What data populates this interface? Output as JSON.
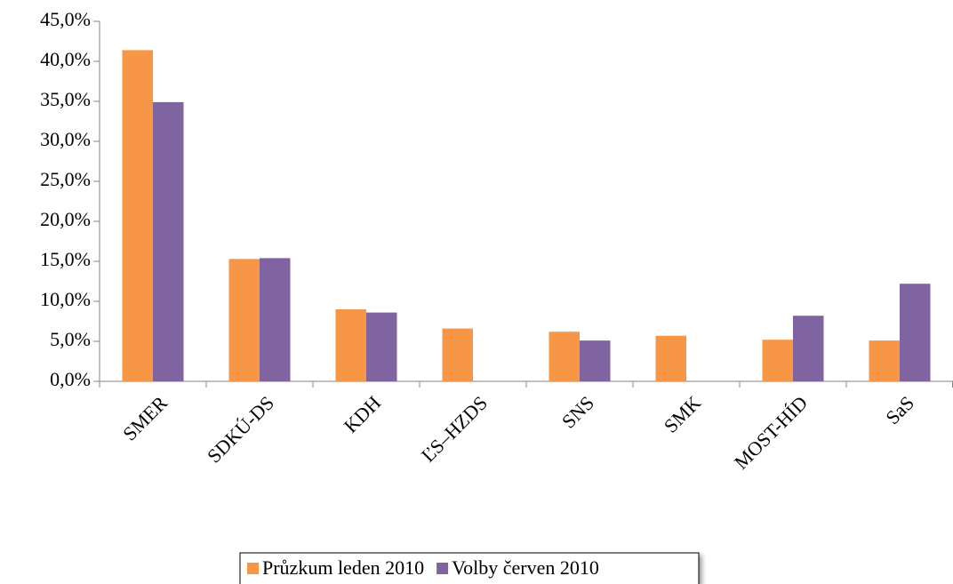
{
  "chart_data": {
    "type": "bar",
    "categories": [
      "SMER",
      "SDKÚ-DS",
      "KDH",
      "ĽS–HZDS",
      "SNS",
      "SMK",
      "MOST-HÍD",
      "SaS"
    ],
    "series": [
      {
        "name": "Průzkum leden 2010",
        "color": "#f79646",
        "values": [
          41.4,
          15.3,
          9.0,
          6.6,
          6.2,
          5.7,
          5.2,
          5.1
        ]
      },
      {
        "name": "Volby červen 2010",
        "color": "#8064a2",
        "values": [
          34.9,
          15.4,
          8.6,
          null,
          5.1,
          null,
          8.2,
          12.2
        ]
      }
    ],
    "ylim": [
      0,
      45
    ],
    "yticks": [
      {
        "value": 0,
        "label": "0,0%"
      },
      {
        "value": 5,
        "label": "5,0%"
      },
      {
        "value": 10,
        "label": "10,0%"
      },
      {
        "value": 15,
        "label": "15,0%"
      },
      {
        "value": 20,
        "label": "20,0%"
      },
      {
        "value": 25,
        "label": "25,0%"
      },
      {
        "value": 30,
        "label": "30,0%"
      },
      {
        "value": 35,
        "label": "35,0%"
      },
      {
        "value": 40,
        "label": "40,0%"
      },
      {
        "value": 45,
        "label": "45,0%"
      }
    ],
    "grid": false,
    "legend": "bottom"
  }
}
